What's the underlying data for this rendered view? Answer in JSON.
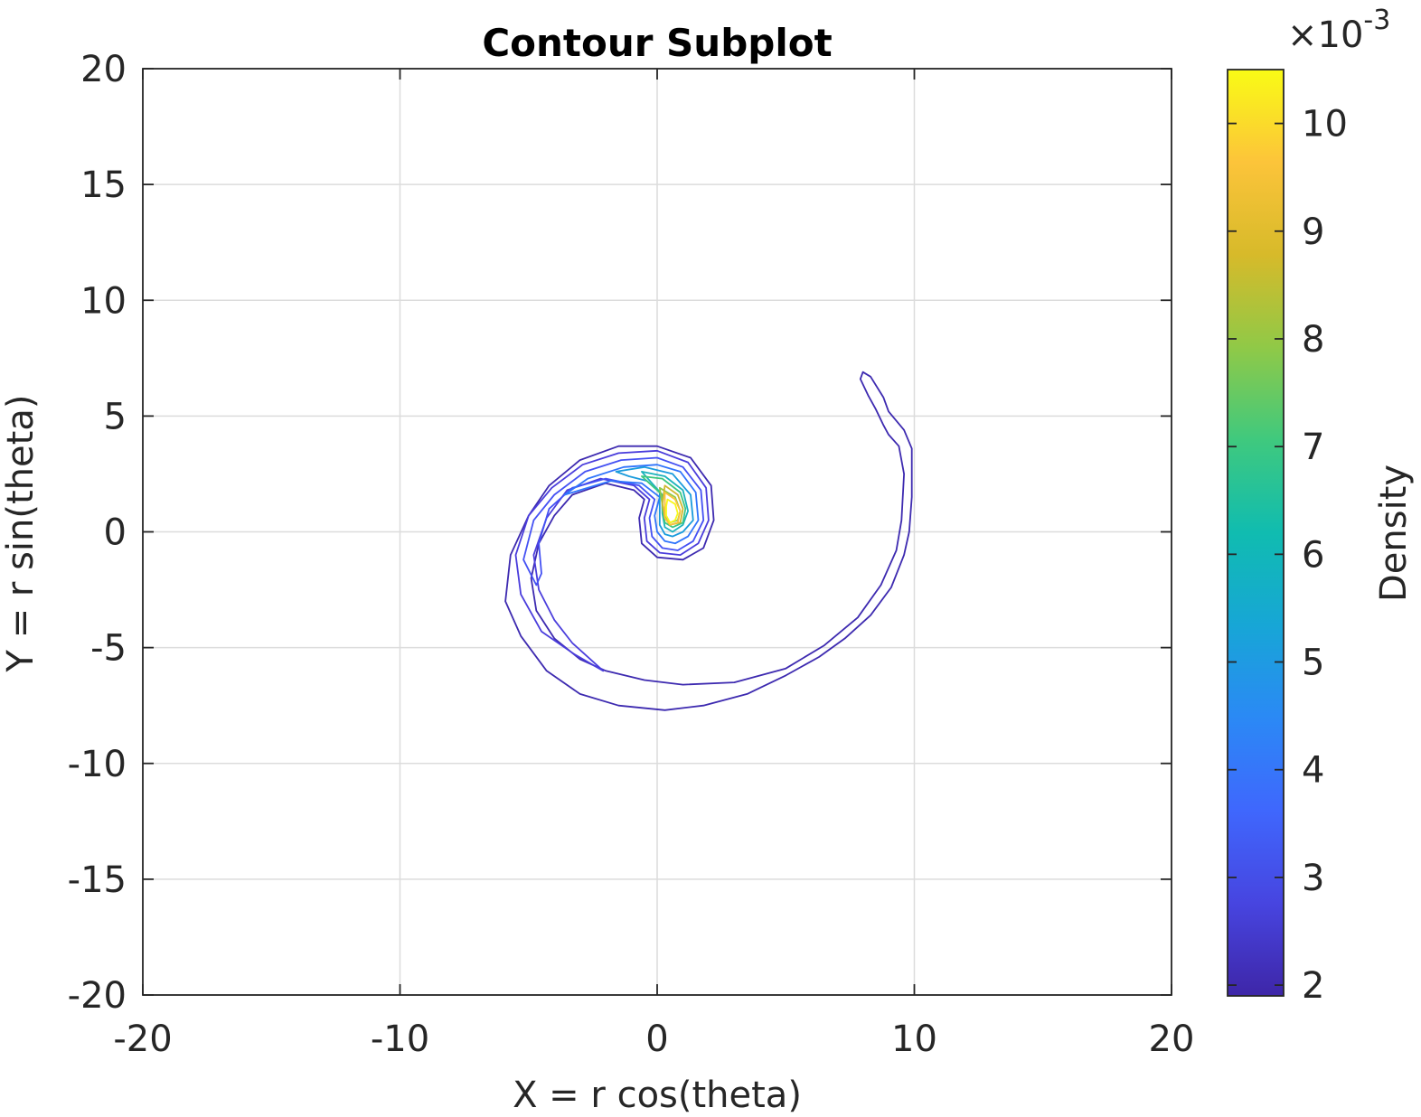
{
  "chart_data": {
    "type": "contour",
    "title": "Contour Subplot",
    "xlabel": "X = r cos(theta)",
    "ylabel": "Y = r sin(theta)",
    "xlim": [
      -20,
      20
    ],
    "ylim": [
      -20,
      20
    ],
    "xticks": [
      -20,
      -10,
      0,
      10,
      20
    ],
    "yticks": [
      -20,
      -15,
      -10,
      -5,
      0,
      5,
      10,
      15,
      20
    ],
    "xtick_labels": [
      "-20",
      "-10",
      "0",
      "10",
      "20"
    ],
    "ytick_labels": [
      "-20",
      "-15",
      "-10",
      "-5",
      "0",
      "5",
      "10",
      "15",
      "20"
    ],
    "grid": true,
    "colorbar": {
      "label": "Density",
      "multiplier": "×10",
      "exponent": "-3",
      "range": [
        1.9,
        10.5
      ],
      "ticks": [
        2,
        3,
        4,
        5,
        6,
        7,
        8,
        9,
        10
      ],
      "tick_labels": [
        "2",
        "3",
        "4",
        "5",
        "6",
        "7",
        "8",
        "9",
        "10"
      ],
      "colormap": [
        "#3e26a8",
        "#4745e0",
        "#3f67fd",
        "#2b89f5",
        "#17a6d6",
        "#10bcb0",
        "#3fc97e",
        "#90c947",
        "#d7ba2a",
        "#fcc43a",
        "#f9fb15"
      ]
    },
    "contours": [
      {
        "level": 2.3,
        "color": "#3d2ab0",
        "points": [
          [
            8.0,
            6.9
          ],
          [
            8.3,
            6.7
          ],
          [
            8.8,
            5.8
          ],
          [
            9.0,
            5.2
          ],
          [
            9.6,
            4.4
          ],
          [
            9.9,
            3.6
          ],
          [
            9.9,
            1.5
          ],
          [
            9.8,
            0.0
          ],
          [
            9.6,
            -1.0
          ],
          [
            9.1,
            -2.4
          ],
          [
            8.3,
            -3.6
          ],
          [
            7.3,
            -4.6
          ],
          [
            6.3,
            -5.4
          ],
          [
            5.0,
            -6.2
          ],
          [
            3.5,
            -7.0
          ],
          [
            1.8,
            -7.5
          ],
          [
            0.3,
            -7.7
          ],
          [
            -1.5,
            -7.5
          ],
          [
            -3.0,
            -7.0
          ],
          [
            -4.3,
            -6.0
          ],
          [
            -5.3,
            -4.5
          ],
          [
            -5.9,
            -3.0
          ],
          [
            -5.7,
            -1.0
          ],
          [
            -5.0,
            0.7
          ],
          [
            -4.2,
            2.0
          ],
          [
            -3.0,
            3.1
          ],
          [
            -1.5,
            3.7
          ],
          [
            0.0,
            3.7
          ],
          [
            1.3,
            3.2
          ],
          [
            2.1,
            2.0
          ],
          [
            2.2,
            0.5
          ],
          [
            1.8,
            -0.7
          ],
          [
            1.0,
            -1.2
          ],
          [
            0.0,
            -1.1
          ],
          [
            -0.6,
            -0.5
          ],
          [
            -0.7,
            0.6
          ],
          [
            -0.5,
            1.4
          ],
          [
            -0.9,
            1.8
          ],
          [
            -2.0,
            2.1
          ],
          [
            -3.3,
            1.6
          ],
          [
            -4.0,
            0.7
          ],
          [
            -4.6,
            -0.5
          ],
          [
            -4.9,
            -2.0
          ],
          [
            -4.7,
            -3.4
          ],
          [
            -4.0,
            -4.6
          ],
          [
            -3.0,
            -5.5
          ],
          [
            -2.0,
            -6.0
          ],
          [
            -0.5,
            -6.4
          ],
          [
            1.0,
            -6.6
          ],
          [
            3.0,
            -6.5
          ],
          [
            5.0,
            -5.9
          ],
          [
            6.5,
            -4.9
          ],
          [
            7.8,
            -3.7
          ],
          [
            8.7,
            -2.3
          ],
          [
            9.3,
            -0.8
          ],
          [
            9.5,
            0.5
          ],
          [
            9.6,
            2.5
          ],
          [
            9.4,
            3.7
          ],
          [
            9.0,
            4.2
          ],
          [
            8.8,
            4.6
          ],
          [
            8.5,
            5.3
          ],
          [
            8.2,
            5.9
          ],
          [
            7.9,
            6.6
          ],
          [
            8.0,
            6.9
          ]
        ]
      },
      {
        "level": 2.9,
        "color": "#4a3ddc",
        "points": [
          [
            -2.1,
            -6.0
          ],
          [
            -3.2,
            -5.3
          ],
          [
            -4.5,
            -4.3
          ],
          [
            -5.3,
            -2.7
          ],
          [
            -5.5,
            -1.0
          ],
          [
            -5.0,
            0.7
          ],
          [
            -4.1,
            1.9
          ],
          [
            -2.9,
            2.9
          ],
          [
            -1.5,
            3.4
          ],
          [
            0.0,
            3.5
          ],
          [
            1.2,
            3.0
          ],
          [
            1.9,
            1.9
          ],
          [
            2.0,
            0.5
          ],
          [
            1.6,
            -0.5
          ],
          [
            0.9,
            -1.0
          ],
          [
            0.1,
            -0.9
          ],
          [
            -0.4,
            -0.4
          ],
          [
            -0.5,
            0.6
          ],
          [
            -0.3,
            1.4
          ],
          [
            -0.9,
            2.0
          ],
          [
            -2.2,
            2.3
          ],
          [
            -3.5,
            1.8
          ],
          [
            -4.3,
            0.6
          ],
          [
            -4.8,
            -1.0
          ],
          [
            -4.6,
            -2.5
          ],
          [
            -4.0,
            -3.8
          ],
          [
            -3.3,
            -4.8
          ],
          [
            -2.1,
            -6.0
          ]
        ]
      },
      {
        "level": 3.6,
        "color": "#4451f3",
        "points": [
          [
            -4.7,
            -2.3
          ],
          [
            -5.2,
            -1.2
          ],
          [
            -4.8,
            0.5
          ],
          [
            -4.0,
            1.6
          ],
          [
            -2.8,
            2.6
          ],
          [
            -1.4,
            3.1
          ],
          [
            0.0,
            3.2
          ],
          [
            1.0,
            2.8
          ],
          [
            1.7,
            1.8
          ],
          [
            1.8,
            0.5
          ],
          [
            1.4,
            -0.4
          ],
          [
            0.8,
            -0.8
          ],
          [
            0.2,
            -0.7
          ],
          [
            -0.2,
            -0.2
          ],
          [
            -0.3,
            0.6
          ],
          [
            -0.1,
            1.4
          ],
          [
            -0.7,
            2.0
          ],
          [
            -2.0,
            2.3
          ],
          [
            -3.3,
            1.9
          ],
          [
            -4.2,
            1.0
          ],
          [
            -4.6,
            -0.5
          ],
          [
            -4.5,
            -1.8
          ],
          [
            -4.7,
            -2.3
          ]
        ]
      },
      {
        "level": 4.4,
        "color": "#2f74fb",
        "points": [
          [
            -3.6,
            1.6
          ],
          [
            -2.7,
            2.3
          ],
          [
            -1.3,
            2.8
          ],
          [
            0.0,
            2.9
          ],
          [
            0.9,
            2.6
          ],
          [
            1.5,
            1.7
          ],
          [
            1.6,
            0.5
          ],
          [
            1.2,
            -0.2
          ],
          [
            0.7,
            -0.5
          ],
          [
            0.3,
            -0.4
          ],
          [
            0.0,
            0.0
          ],
          [
            -0.1,
            0.7
          ],
          [
            0.1,
            1.5
          ],
          [
            -0.6,
            2.1
          ],
          [
            -1.8,
            2.2
          ],
          [
            -3.0,
            1.8
          ],
          [
            -3.6,
            1.6
          ]
        ]
      },
      {
        "level": 5.2,
        "color": "#1a9bdc",
        "points": [
          [
            -1.6,
            2.6
          ],
          [
            -0.5,
            2.8
          ],
          [
            0.6,
            2.5
          ],
          [
            1.3,
            1.6
          ],
          [
            1.4,
            0.5
          ],
          [
            1.0,
            0.0
          ],
          [
            0.6,
            -0.2
          ],
          [
            0.3,
            -0.1
          ],
          [
            0.1,
            0.3
          ],
          [
            0.1,
            1.0
          ],
          [
            0.1,
            1.7
          ],
          [
            -0.4,
            2.2
          ],
          [
            -1.1,
            2.4
          ],
          [
            -1.6,
            2.6
          ]
        ]
      },
      {
        "level": 6.1,
        "color": "#1cb3bc",
        "points": [
          [
            -0.6,
            2.6
          ],
          [
            0.3,
            2.4
          ],
          [
            1.0,
            1.8
          ],
          [
            1.2,
            0.9
          ],
          [
            1.0,
            0.3
          ],
          [
            0.6,
            0.0
          ],
          [
            0.3,
            0.2
          ],
          [
            0.2,
            0.8
          ],
          [
            0.2,
            1.6
          ],
          [
            -0.2,
            2.1
          ],
          [
            -0.6,
            2.6
          ]
        ]
      },
      {
        "level": 6.9,
        "color": "#3ec77f",
        "points": [
          [
            -0.6,
            2.4
          ],
          [
            0.2,
            2.3
          ],
          [
            0.9,
            1.7
          ],
          [
            1.1,
            1.0
          ],
          [
            1.0,
            0.4
          ],
          [
            0.6,
            0.2
          ],
          [
            0.3,
            0.4
          ],
          [
            0.2,
            1.0
          ],
          [
            0.2,
            1.6
          ],
          [
            -0.2,
            2.0
          ],
          [
            -0.6,
            2.4
          ]
        ]
      },
      {
        "level": 7.8,
        "color": "#8fca49",
        "points": [
          [
            0.1,
            1.9
          ],
          [
            0.7,
            1.5
          ],
          [
            0.9,
            0.9
          ],
          [
            0.8,
            0.5
          ],
          [
            0.5,
            0.4
          ],
          [
            0.3,
            0.7
          ],
          [
            0.2,
            1.2
          ],
          [
            0.1,
            1.9
          ]
        ]
      },
      {
        "level": 8.6,
        "color": "#cfb72f",
        "points": [
          [
            0.3,
            2.0
          ],
          [
            0.8,
            1.6
          ],
          [
            1.0,
            1.0
          ],
          [
            0.9,
            0.4
          ],
          [
            0.5,
            0.3
          ],
          [
            0.3,
            0.6
          ],
          [
            0.2,
            1.2
          ],
          [
            0.3,
            2.0
          ]
        ]
      },
      {
        "level": 9.5,
        "color": "#fbc23d",
        "points": [
          [
            0.3,
            1.7
          ],
          [
            0.7,
            1.4
          ],
          [
            0.9,
            0.9
          ],
          [
            0.8,
            0.4
          ],
          [
            0.5,
            0.3
          ],
          [
            0.3,
            0.6
          ],
          [
            0.3,
            1.1
          ],
          [
            0.3,
            1.7
          ]
        ]
      },
      {
        "level": 10.3,
        "color": "#f7f71a",
        "points": [
          [
            0.4,
            1.4
          ],
          [
            0.7,
            1.2
          ],
          [
            0.8,
            0.8
          ],
          [
            0.7,
            0.5
          ],
          [
            0.5,
            0.4
          ],
          [
            0.35,
            0.7
          ],
          [
            0.35,
            1.1
          ],
          [
            0.4,
            1.4
          ]
        ]
      }
    ]
  }
}
